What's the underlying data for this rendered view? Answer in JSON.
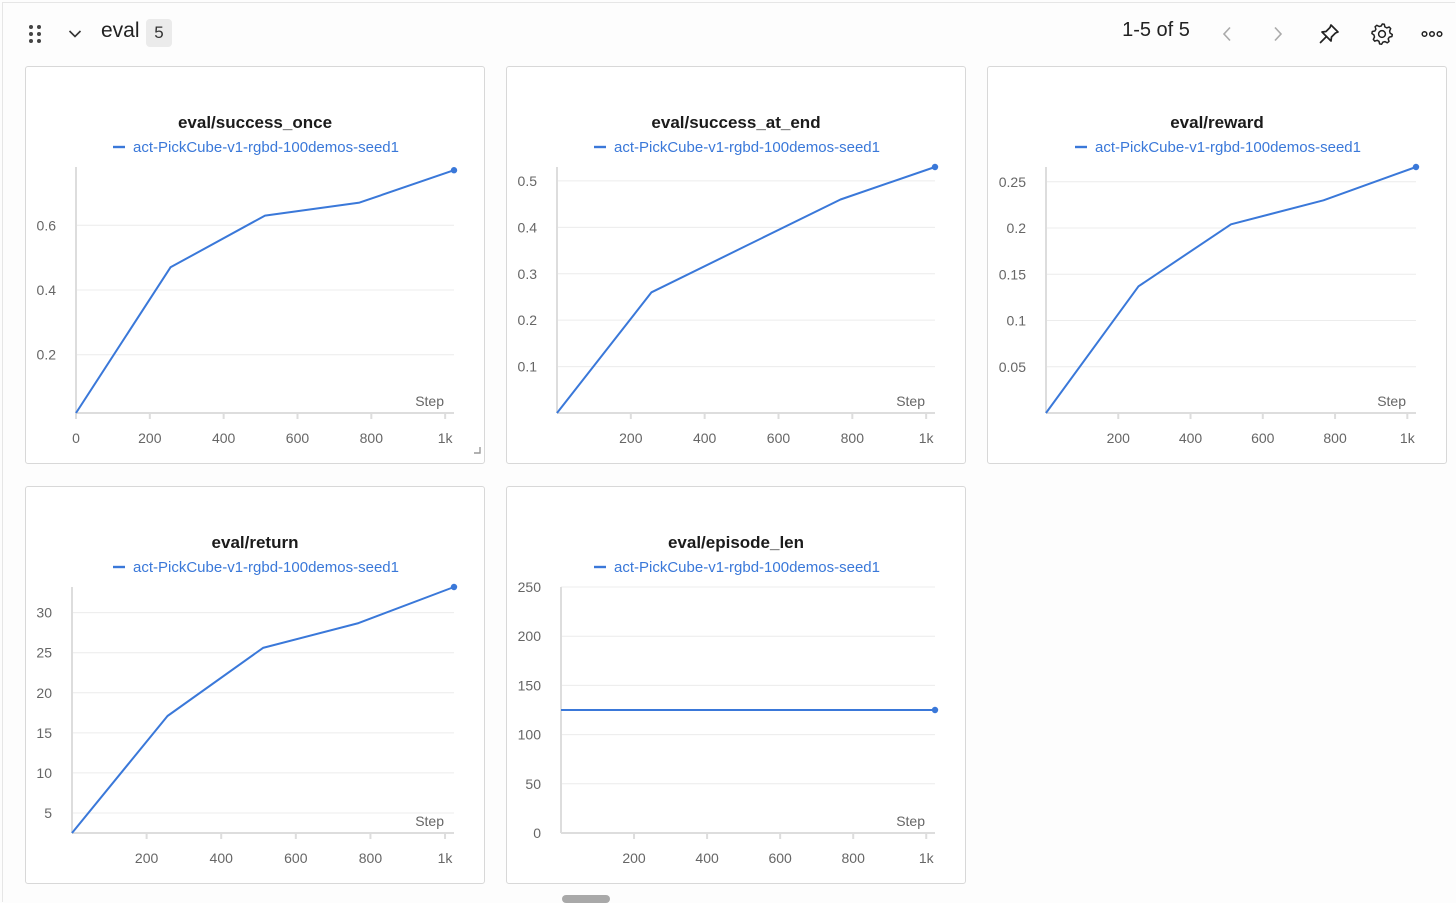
{
  "header": {
    "section_title": "eval",
    "section_count": "5",
    "pager_text": "1-5 of 5",
    "icons": [
      "drag-handle-icon",
      "chevron-down-icon",
      "chevron-left-icon",
      "chevron-right-icon",
      "pin-icon",
      "gear-icon",
      "more-horizontal-icon"
    ]
  },
  "colors": {
    "series": "#3a78d9",
    "grid": "#ececec",
    "axis": "#dddddd"
  },
  "chart_data": [
    {
      "type": "line",
      "title": "eval/success_once",
      "xlabel": "Step",
      "legend": [
        "act-PickCube-v1-rgbd-100demos-seed1"
      ],
      "xlim": [
        0,
        1024
      ],
      "ylim": [
        0.02,
        0.78
      ],
      "xticks": [
        0,
        200,
        400,
        600,
        800,
        1000
      ],
      "xticklabels": [
        "0",
        "200",
        "400",
        "600",
        "800",
        "1k"
      ],
      "yticks": [
        0.2,
        0.4,
        0.6
      ],
      "yticklabels": [
        "0.2",
        "0.4",
        "0.6"
      ],
      "series": [
        {
          "name": "act-PickCube-v1-rgbd-100demos-seed1",
          "x": [
            0,
            256,
            512,
            768,
            1024
          ],
          "y": [
            0.02,
            0.47,
            0.63,
            0.67,
            0.77
          ]
        }
      ]
    },
    {
      "type": "line",
      "title": "eval/success_at_end",
      "xlabel": "Step",
      "legend": [
        "act-PickCube-v1-rgbd-100demos-seed1"
      ],
      "xlim": [
        0,
        1024
      ],
      "ylim": [
        0.0,
        0.53
      ],
      "xticks": [
        200,
        400,
        600,
        800,
        1000
      ],
      "xticklabels": [
        "200",
        "400",
        "600",
        "800",
        "1k"
      ],
      "yticks": [
        0.1,
        0.2,
        0.3,
        0.4,
        0.5
      ],
      "yticklabels": [
        "0.1",
        "0.2",
        "0.3",
        "0.4",
        "0.5"
      ],
      "series": [
        {
          "name": "act-PickCube-v1-rgbd-100demos-seed1",
          "x": [
            0,
            256,
            512,
            768,
            1024
          ],
          "y": [
            0.0,
            0.26,
            0.36,
            0.46,
            0.53
          ]
        }
      ]
    },
    {
      "type": "line",
      "title": "eval/reward",
      "xlabel": "Step",
      "legend": [
        "act-PickCube-v1-rgbd-100demos-seed1"
      ],
      "xlim": [
        0,
        1024
      ],
      "ylim": [
        0.0,
        0.266
      ],
      "xticks": [
        200,
        400,
        600,
        800,
        1000
      ],
      "xticklabels": [
        "200",
        "400",
        "600",
        "800",
        "1k"
      ],
      "yticks": [
        0.05,
        0.1,
        0.15,
        0.2,
        0.25
      ],
      "yticklabels": [
        "0.05",
        "0.1",
        "0.15",
        "0.2",
        "0.25"
      ],
      "series": [
        {
          "name": "act-PickCube-v1-rgbd-100demos-seed1",
          "x": [
            0,
            256,
            512,
            768,
            1024
          ],
          "y": [
            0.0,
            0.137,
            0.204,
            0.23,
            0.266
          ]
        }
      ]
    },
    {
      "type": "line",
      "title": "eval/return",
      "xlabel": "Step",
      "legend": [
        "act-PickCube-v1-rgbd-100demos-seed1"
      ],
      "xlim": [
        0,
        1024
      ],
      "ylim": [
        2.5,
        33.2
      ],
      "xticks": [
        200,
        400,
        600,
        800,
        1000
      ],
      "xticklabels": [
        "200",
        "400",
        "600",
        "800",
        "1k"
      ],
      "yticks": [
        5,
        10,
        15,
        20,
        25,
        30
      ],
      "yticklabels": [
        "5",
        "10",
        "15",
        "20",
        "25",
        "30"
      ],
      "series": [
        {
          "name": "act-PickCube-v1-rgbd-100demos-seed1",
          "x": [
            0,
            256,
            512,
            768,
            1024
          ],
          "y": [
            2.5,
            17.1,
            25.6,
            28.7,
            33.2
          ]
        }
      ]
    },
    {
      "type": "line",
      "title": "eval/episode_len",
      "xlabel": "Step",
      "legend": [
        "act-PickCube-v1-rgbd-100demos-seed1"
      ],
      "xlim": [
        0,
        1024
      ],
      "ylim": [
        0,
        250
      ],
      "xticks": [
        200,
        400,
        600,
        800,
        1000
      ],
      "xticklabels": [
        "200",
        "400",
        "600",
        "800",
        "1k"
      ],
      "yticks": [
        0,
        50,
        100,
        150,
        200,
        250
      ],
      "yticklabels": [
        "0",
        "50",
        "100",
        "150",
        "200",
        "250"
      ],
      "series": [
        {
          "name": "act-PickCube-v1-rgbd-100demos-seed1",
          "x": [
            0,
            1024
          ],
          "y": [
            125,
            125
          ]
        }
      ]
    }
  ]
}
